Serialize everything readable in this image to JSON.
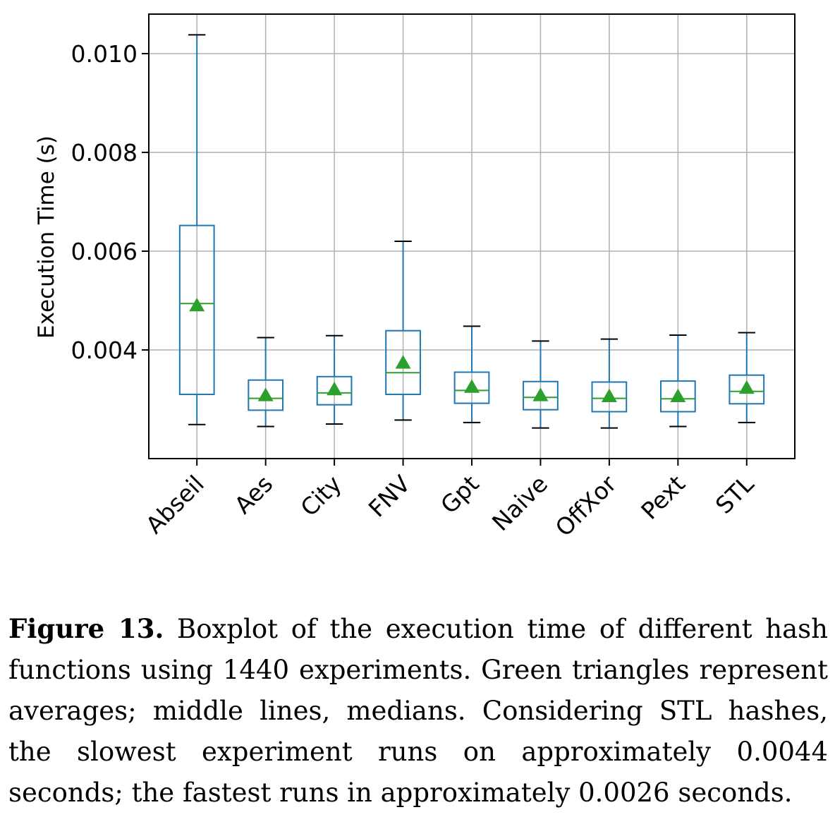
{
  "chart_data": {
    "type": "boxplot",
    "ylabel": "Execution Time (s)",
    "xlabel": "",
    "categories": [
      "Abseil",
      "Aes",
      "City",
      "FNV",
      "Gpt",
      "Naive",
      "OffXor",
      "Pext",
      "STL"
    ],
    "ylim": [
      0.0018,
      0.0108
    ],
    "yticks": [
      0.004,
      0.006,
      0.008,
      0.01
    ],
    "ytick_labels": [
      "0.004",
      "0.006",
      "0.008",
      "0.010"
    ],
    "grid": true,
    "boxes": [
      {
        "name": "Abseil",
        "whisker_low": 0.00249,
        "q1": 0.0031,
        "median": 0.00494,
        "q3": 0.00652,
        "whisker_high": 0.01038,
        "mean": 0.0049
      },
      {
        "name": "Aes",
        "whisker_low": 0.00245,
        "q1": 0.00278,
        "median": 0.00302,
        "q3": 0.00339,
        "whisker_high": 0.00425,
        "mean": 0.00308
      },
      {
        "name": "City",
        "whisker_low": 0.0025,
        "q1": 0.00289,
        "median": 0.00313,
        "q3": 0.00346,
        "whisker_high": 0.00429,
        "mean": 0.0032
      },
      {
        "name": "FNV",
        "whisker_low": 0.00258,
        "q1": 0.0031,
        "median": 0.00354,
        "q3": 0.00439,
        "whisker_high": 0.0062,
        "mean": 0.00374
      },
      {
        "name": "Gpt",
        "whisker_low": 0.00253,
        "q1": 0.00292,
        "median": 0.00318,
        "q3": 0.00355,
        "whisker_high": 0.00448,
        "mean": 0.00325
      },
      {
        "name": "Naive",
        "whisker_low": 0.00242,
        "q1": 0.00279,
        "median": 0.00304,
        "q3": 0.00336,
        "whisker_high": 0.00418,
        "mean": 0.00308
      },
      {
        "name": "OffXor",
        "whisker_low": 0.00242,
        "q1": 0.00275,
        "median": 0.00302,
        "q3": 0.00335,
        "whisker_high": 0.00422,
        "mean": 0.00306
      },
      {
        "name": "Pext",
        "whisker_low": 0.00245,
        "q1": 0.00275,
        "median": 0.00301,
        "q3": 0.00337,
        "whisker_high": 0.0043,
        "mean": 0.00306
      },
      {
        "name": "STL",
        "whisker_low": 0.00253,
        "q1": 0.00291,
        "median": 0.00316,
        "q3": 0.00349,
        "whisker_high": 0.00435,
        "mean": 0.00323
      }
    ],
    "colors": {
      "box": "#1f77b4",
      "median": "#2ca02c",
      "mean": "#2ca02c",
      "whisker_cap": "#000000",
      "grid": "#b0b0b0"
    }
  },
  "caption": {
    "lead": "Figure 13.",
    "text": " Boxplot of the execution time of different hash functions using 1440 experiments. Green triangles represent averages; middle lines, medians. Considering STL hashes, the slowest experiment runs on approximately 0.0044 seconds; the fastest runs in approximately 0.0026 seconds."
  }
}
